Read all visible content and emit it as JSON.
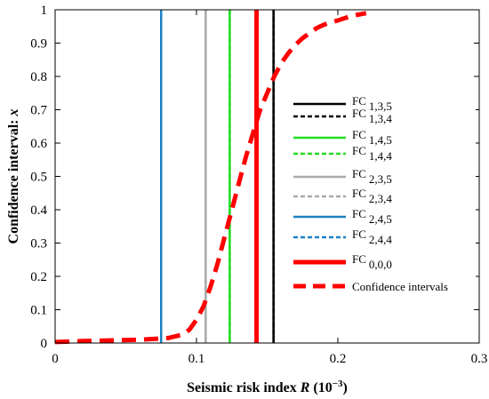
{
  "chart_data": {
    "type": "line",
    "xlabel": "Seismic risk index",
    "xlabel_var": "R",
    "xlabel_unit_base": "(10",
    "xlabel_unit_exp": "−3",
    "xlabel_unit_close": ")",
    "ylabel": "Confidence interval:",
    "ylabel_var": "x",
    "xlim": [
      0,
      0.3
    ],
    "ylim": [
      0,
      1
    ],
    "xticks": [
      0,
      0.1,
      0.2,
      0.3
    ],
    "xtick_labels": [
      "0",
      "0.1",
      "0.2",
      "0.3"
    ],
    "yticks": [
      0,
      0.1,
      0.2,
      0.3,
      0.4,
      0.5,
      0.6,
      0.7,
      0.8,
      0.9,
      1
    ],
    "ytick_labels": [
      "0",
      "0.1",
      "0.2",
      "0.3",
      "0.4",
      "0.5",
      "0.6",
      "0.7",
      "0.8",
      "0.9",
      "1"
    ],
    "grid": false,
    "legend_position": "right",
    "vertical_lines": [
      {
        "base": "FC",
        "sub": "1,3,5",
        "x": 0.1545,
        "color": "#000000",
        "style": "solid",
        "width": "normal"
      },
      {
        "base": "FC",
        "sub": "1,3,4",
        "x": 0.1545,
        "color": "#000000",
        "style": "dashed",
        "width": "normal"
      },
      {
        "base": "FC",
        "sub": "1,4,5",
        "x": 0.1235,
        "color": "#22dd22",
        "style": "solid",
        "width": "normal"
      },
      {
        "base": "FC",
        "sub": "1,4,4",
        "x": 0.1235,
        "color": "#22dd22",
        "style": "dashed",
        "width": "normal"
      },
      {
        "base": "FC",
        "sub": "2,3,5",
        "x": 0.1065,
        "color": "#aaaaaa",
        "style": "solid",
        "width": "normal"
      },
      {
        "base": "FC",
        "sub": "2,3,4",
        "x": 0.1065,
        "color": "#aaaaaa",
        "style": "dashed",
        "width": "normal"
      },
      {
        "base": "FC",
        "sub": "2,4,5",
        "x": 0.075,
        "color": "#1a80c4",
        "style": "solid",
        "width": "normal"
      },
      {
        "base": "FC",
        "sub": "2,4,4",
        "x": 0.075,
        "color": "#1a80c4",
        "style": "dashed",
        "width": "normal"
      },
      {
        "base": "FC",
        "sub": "0,0,0",
        "x": 0.1425,
        "color": "#ff0000",
        "style": "solid",
        "width": "thick"
      }
    ],
    "series": [
      {
        "name": "Confidence intervals",
        "color": "#ff0000",
        "style": "dashed",
        "x": [
          0,
          0.02,
          0.04,
          0.06,
          0.08,
          0.09,
          0.095,
          0.1,
          0.105,
          0.11,
          0.115,
          0.12,
          0.125,
          0.13,
          0.135,
          0.14,
          0.145,
          0.15,
          0.155,
          0.16,
          0.165,
          0.17,
          0.175,
          0.18,
          0.185,
          0.19,
          0.195,
          0.2,
          0.205,
          0.21,
          0.22
        ],
        "y": [
          0.003,
          0.006,
          0.008,
          0.01,
          0.015,
          0.025,
          0.04,
          0.07,
          0.11,
          0.17,
          0.24,
          0.32,
          0.4,
          0.48,
          0.56,
          0.63,
          0.7,
          0.75,
          0.8,
          0.84,
          0.87,
          0.895,
          0.915,
          0.93,
          0.945,
          0.955,
          0.962,
          0.968,
          0.975,
          0.982,
          0.99
        ]
      }
    ]
  }
}
